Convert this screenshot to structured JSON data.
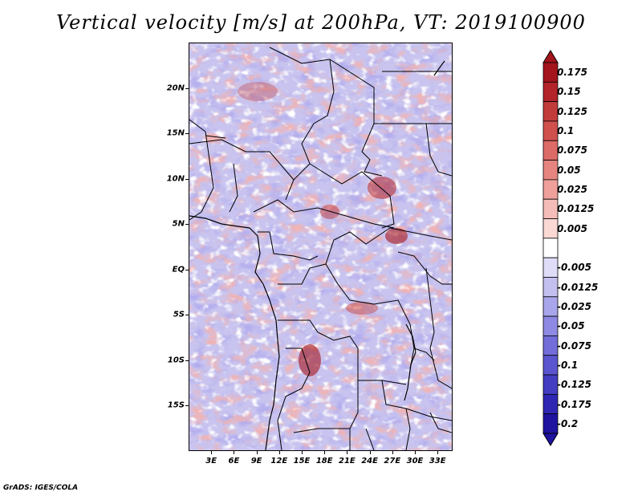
{
  "title": "Vertical velocity [m/s] at 200hPa, VT: 2019100900",
  "footer": "GrADS: IGES/COLA",
  "map": {
    "lon_range": [
      0,
      35
    ],
    "lat_range": [
      -20,
      25
    ],
    "lat_ticks": [
      {
        "value": 20,
        "label": "20N"
      },
      {
        "value": 15,
        "label": "15N"
      },
      {
        "value": 10,
        "label": "10N"
      },
      {
        "value": 5,
        "label": "5N"
      },
      {
        "value": 0,
        "label": "EQ"
      },
      {
        "value": -5,
        "label": "5S"
      },
      {
        "value": -10,
        "label": "10S"
      },
      {
        "value": -15,
        "label": "15S"
      }
    ],
    "lon_ticks": [
      {
        "value": 3,
        "label": "3E"
      },
      {
        "value": 6,
        "label": "6E"
      },
      {
        "value": 9,
        "label": "9E"
      },
      {
        "value": 12,
        "label": "12E"
      },
      {
        "value": 15,
        "label": "15E"
      },
      {
        "value": 18,
        "label": "18E"
      },
      {
        "value": 21,
        "label": "21E"
      },
      {
        "value": 24,
        "label": "24E"
      },
      {
        "value": 27,
        "label": "27E"
      },
      {
        "value": 30,
        "label": "30E"
      },
      {
        "value": 33,
        "label": "33E"
      }
    ]
  },
  "colorbar": {
    "levels": [
      {
        "label": "0.175",
        "color": "#a3141c"
      },
      {
        "label": "0.15",
        "color": "#b3232a"
      },
      {
        "label": "0.125",
        "color": "#c23b3b"
      },
      {
        "label": "0.1",
        "color": "#d0504e"
      },
      {
        "label": "0.075",
        "color": "#dc6a66"
      },
      {
        "label": "0.05",
        "color": "#e6857f"
      },
      {
        "label": "0.025",
        "color": "#efa09a"
      },
      {
        "label": "0.0125",
        "color": "#f5bdb8"
      },
      {
        "label": "0.005",
        "color": "#fad9d5"
      },
      {
        "label": "",
        "color": "#ffffff"
      },
      {
        "label": "-0.005",
        "color": "#dedcf7"
      },
      {
        "label": "-0.0125",
        "color": "#c3c0f0"
      },
      {
        "label": "-0.025",
        "color": "#a9a5ea"
      },
      {
        "label": "-0.05",
        "color": "#8e89e2"
      },
      {
        "label": "-0.075",
        "color": "#736dd9"
      },
      {
        "label": "-0.1",
        "color": "#5b55cf"
      },
      {
        "label": "-0.125",
        "color": "#433dc2"
      },
      {
        "label": "-0.175",
        "color": "#2f27b3"
      },
      {
        "label": "-0.2",
        "color": "#1f13a0"
      }
    ],
    "top_arrow_color": "#a3141c",
    "bottom_arrow_color": "#1f13a0"
  }
}
